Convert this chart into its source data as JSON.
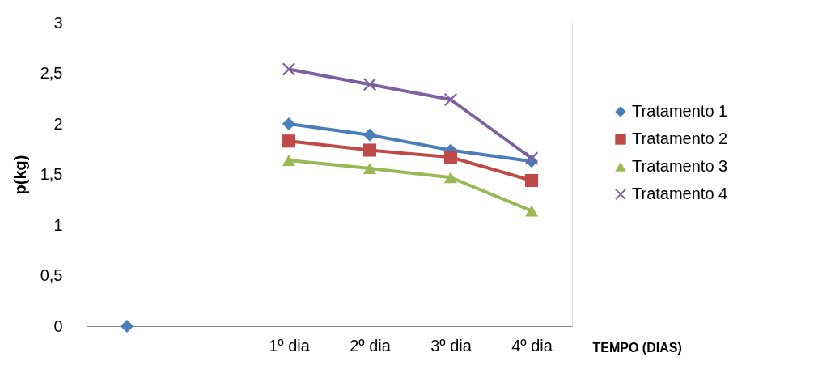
{
  "chart_data": {
    "type": "line",
    "ylabel": "p(kg)",
    "xlabel": "TEMPO (DIAS)",
    "categories": [
      null,
      null,
      "1º dia",
      "2º dia",
      "3º dia",
      "4º dia"
    ],
    "ylim": [
      0,
      3
    ],
    "yticks": [
      {
        "value": 0,
        "label": "0"
      },
      {
        "value": 0.5,
        "label": "0,5"
      },
      {
        "value": 1,
        "label": "1"
      },
      {
        "value": 1.5,
        "label": "1,5"
      },
      {
        "value": 2,
        "label": "2"
      },
      {
        "value": 2.5,
        "label": "2,5"
      },
      {
        "value": 3,
        "label": "3"
      }
    ],
    "grid": false,
    "legend": "right",
    "series": [
      {
        "name": "Tratamento 1",
        "color": "#4a7ebb",
        "marker": "diamond",
        "values": [
          0,
          null,
          2.0,
          1.89,
          1.74,
          1.63
        ]
      },
      {
        "name": "Tratamento 2",
        "color": "#be4b48",
        "marker": "square",
        "values": [
          null,
          null,
          1.83,
          1.74,
          1.67,
          1.44
        ]
      },
      {
        "name": "Tratamento 3",
        "color": "#98b954",
        "marker": "triangle",
        "values": [
          null,
          null,
          1.64,
          1.56,
          1.47,
          1.14
        ]
      },
      {
        "name": "Tratamento 4",
        "color": "#7d60a0",
        "marker": "cross",
        "values": [
          null,
          null,
          2.54,
          2.39,
          2.24,
          1.66
        ]
      }
    ]
  }
}
